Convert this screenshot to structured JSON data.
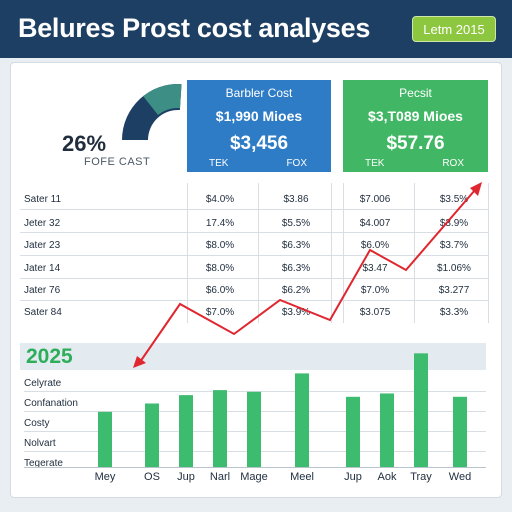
{
  "header": {
    "title": "Belures Prost cost analyses",
    "badge": "Letm 2015",
    "accent_color": "#1d3f63",
    "badge_color": "#8dc63f"
  },
  "gauge": {
    "value": "26%",
    "label": "FOFE CAST",
    "fill_fraction": 0.26,
    "color": "#1d3f63"
  },
  "panels": [
    {
      "title": "Barbler Cost",
      "subtitle": "$1,990 Mioes",
      "value": "$3,456",
      "left": "TEK",
      "right": "FOX",
      "color": "#2e7cc6"
    },
    {
      "title": "Pecsit",
      "subtitle": "$3,T089 Mioes",
      "value": "$57.76",
      "left": "TEK",
      "right": "ROX",
      "color": "#41b766"
    }
  ],
  "table": {
    "rows": [
      {
        "label": "Sater 11",
        "cells": [
          "$4.0%",
          "$3.86",
          "$7.006",
          "$3.5%"
        ]
      },
      {
        "label": "Jeter 32",
        "cells": [
          "17.4%",
          "$5.5%",
          "$4.007",
          "$3.9%"
        ]
      },
      {
        "label": "Jater 23",
        "cells": [
          "$8.0%",
          "$6.3%",
          "$6.0%",
          "$3.7%"
        ]
      },
      {
        "label": "Jater 14",
        "cells": [
          "$8.0%",
          "$6.3%",
          "$3.47",
          "$1.06%"
        ]
      },
      {
        "label": "Jater 76",
        "cells": [
          "$6.0%",
          "$6.2%",
          "$7.0%",
          "$3.277"
        ]
      },
      {
        "label": "Sater 84",
        "cells": [
          "$7.0%",
          "$3.9%",
          "$3.075",
          "$3.3%"
        ]
      }
    ]
  },
  "trend_color": "#e0262e",
  "chart_data": {
    "type": "bar",
    "title": "2025",
    "categories": [
      "Mey",
      "OS",
      "Jup",
      "Narl",
      "Mage",
      "Meel",
      "Jup",
      "Aok",
      "Tray",
      "Wed"
    ],
    "series": [
      {
        "values": [
          33,
          38,
          43,
          46,
          45,
          56,
          42,
          44,
          68,
          42
        ]
      }
    ],
    "y_category_labels": [
      "Celyrate",
      "Confanation",
      "Costy",
      "Nolvart",
      "Tegerate"
    ],
    "ylim": [
      0,
      70
    ],
    "bar_color": "#3dbb6e",
    "grid": false
  }
}
